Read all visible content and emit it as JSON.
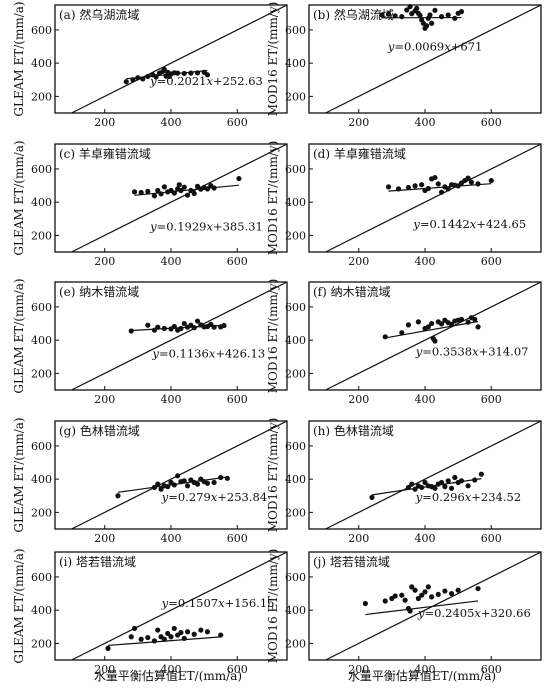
{
  "figure": {
    "xlabel": "水量平衡估算值ET/(mm/a)",
    "ylabel_left": "GLEAM ET/(mm/a)",
    "ylabel_right": "MOD16 ET/(mm/y)"
  },
  "chart_data": [
    {
      "type": "scatter",
      "title": "(a) 然乌湖流域",
      "ylabel": "GLEAM ET/(mm/a)",
      "xlim": [
        50,
        750
      ],
      "ylim": [
        100,
        750
      ],
      "xticks": [
        200,
        400,
        600
      ],
      "yticks": [
        200,
        400,
        600
      ],
      "equation": "y=0.2021x+252.63",
      "fit": {
        "slope": 0.2021,
        "intercept": 252.63
      },
      "reference_line": "1:1",
      "points": [
        [
          265,
          288
        ],
        [
          285,
          300
        ],
        [
          300,
          312
        ],
        [
          315,
          305
        ],
        [
          330,
          320
        ],
        [
          345,
          330
        ],
        [
          355,
          318
        ],
        [
          365,
          340
        ],
        [
          375,
          350
        ],
        [
          380,
          362
        ],
        [
          385,
          322
        ],
        [
          390,
          345
        ],
        [
          395,
          320
        ],
        [
          400,
          335
        ],
        [
          410,
          342
        ],
        [
          420,
          340
        ],
        [
          440,
          338
        ],
        [
          460,
          340
        ],
        [
          480,
          342
        ],
        [
          500,
          345
        ],
        [
          510,
          330
        ]
      ]
    },
    {
      "type": "scatter",
      "title": "(b) 然乌湖流域",
      "ylabel": "MOD16 ET/(mm/y)",
      "xlim": [
        50,
        750
      ],
      "ylim": [
        100,
        750
      ],
      "xticks": [
        200,
        400,
        600
      ],
      "yticks": [
        200,
        400,
        600
      ],
      "equation": "y=0.0069x+671",
      "fit": {
        "slope": 0.0069,
        "intercept": 671
      },
      "reference_line": "1:1",
      "points": [
        [
          270,
          690
        ],
        [
          290,
          695
        ],
        [
          310,
          685
        ],
        [
          330,
          680
        ],
        [
          345,
          720
        ],
        [
          355,
          740
        ],
        [
          360,
          698
        ],
        [
          370,
          715
        ],
        [
          375,
          730
        ],
        [
          380,
          700
        ],
        [
          385,
          688
        ],
        [
          390,
          660
        ],
        [
          395,
          640
        ],
        [
          400,
          610
        ],
        [
          405,
          625
        ],
        [
          410,
          670
        ],
        [
          415,
          690
        ],
        [
          420,
          640
        ],
        [
          430,
          718
        ],
        [
          450,
          680
        ],
        [
          470,
          690
        ],
        [
          490,
          670
        ],
        [
          500,
          700
        ],
        [
          510,
          710
        ]
      ]
    },
    {
      "type": "scatter",
      "title": "(c) 羊卓雍错流域",
      "ylabel": "GLEAM ET/(mm/a)",
      "xlim": [
        50,
        750
      ],
      "ylim": [
        100,
        750
      ],
      "xticks": [
        200,
        400,
        600
      ],
      "yticks": [
        200,
        400,
        600
      ],
      "equation": "y=0.1929x+385.31",
      "fit": {
        "slope": 0.1929,
        "intercept": 385.31
      },
      "reference_line": "1:1",
      "points": [
        [
          290,
          462
        ],
        [
          310,
          458
        ],
        [
          330,
          465
        ],
        [
          350,
          438
        ],
        [
          360,
          470
        ],
        [
          370,
          450
        ],
        [
          380,
          492
        ],
        [
          390,
          462
        ],
        [
          400,
          470
        ],
        [
          410,
          455
        ],
        [
          420,
          480
        ],
        [
          425,
          505
        ],
        [
          430,
          470
        ],
        [
          440,
          490
        ],
        [
          450,
          442
        ],
        [
          460,
          470
        ],
        [
          470,
          452
        ],
        [
          480,
          495
        ],
        [
          490,
          478
        ],
        [
          500,
          488
        ],
        [
          510,
          480
        ],
        [
          520,
          500
        ],
        [
          530,
          485
        ],
        [
          605,
          542
        ]
      ]
    },
    {
      "type": "scatter",
      "title": "(d) 羊卓雍错流域",
      "ylabel": "MOD16 ET/(mm/y)",
      "xlim": [
        50,
        750
      ],
      "ylim": [
        100,
        750
      ],
      "xticks": [
        200,
        400,
        600
      ],
      "yticks": [
        200,
        400,
        600
      ],
      "equation": "y=0.1442x+424.65",
      "fit": {
        "slope": 0.1442,
        "intercept": 424.65
      },
      "reference_line": "1:1",
      "points": [
        [
          290,
          492
        ],
        [
          320,
          480
        ],
        [
          350,
          488
        ],
        [
          370,
          498
        ],
        [
          390,
          505
        ],
        [
          400,
          470
        ],
        [
          410,
          482
        ],
        [
          420,
          540
        ],
        [
          430,
          548
        ],
        [
          440,
          510
        ],
        [
          450,
          460
        ],
        [
          460,
          492
        ],
        [
          470,
          480
        ],
        [
          480,
          505
        ],
        [
          490,
          502
        ],
        [
          500,
          498
        ],
        [
          510,
          515
        ],
        [
          520,
          530
        ],
        [
          530,
          545
        ],
        [
          540,
          520
        ],
        [
          560,
          510
        ],
        [
          600,
          530
        ]
      ]
    },
    {
      "type": "scatter",
      "title": "(e) 纳木错流域",
      "ylabel": "GLEAM ET/(mm/a)",
      "xlim": [
        50,
        750
      ],
      "ylim": [
        100,
        750
      ],
      "xticks": [
        200,
        400,
        600
      ],
      "yticks": [
        200,
        400,
        600
      ],
      "equation": "y=0.1136x+426.13",
      "fit": {
        "slope": 0.1136,
        "intercept": 426.13
      },
      "reference_line": "1:1",
      "points": [
        [
          280,
          455
        ],
        [
          330,
          490
        ],
        [
          350,
          460
        ],
        [
          360,
          478
        ],
        [
          380,
          470
        ],
        [
          400,
          468
        ],
        [
          410,
          482
        ],
        [
          420,
          460
        ],
        [
          430,
          470
        ],
        [
          440,
          500
        ],
        [
          450,
          478
        ],
        [
          460,
          490
        ],
        [
          470,
          475
        ],
        [
          480,
          515
        ],
        [
          490,
          492
        ],
        [
          500,
          480
        ],
        [
          510,
          482
        ],
        [
          520,
          495
        ],
        [
          530,
          478
        ],
        [
          550,
          480
        ],
        [
          560,
          488
        ]
      ]
    },
    {
      "type": "scatter",
      "title": "(f) 纳木错流域",
      "ylabel": "MOD16 ET/(mm/y)",
      "xlim": [
        50,
        750
      ],
      "ylim": [
        100,
        750
      ],
      "xticks": [
        200,
        400,
        600
      ],
      "yticks": [
        200,
        400,
        600
      ],
      "equation": "y=0.3538x+314.07",
      "fit": {
        "slope": 0.3538,
        "intercept": 314.07
      },
      "reference_line": "1:1",
      "points": [
        [
          280,
          420
        ],
        [
          330,
          445
        ],
        [
          350,
          492
        ],
        [
          380,
          510
        ],
        [
          400,
          470
        ],
        [
          410,
          480
        ],
        [
          420,
          500
        ],
        [
          425,
          410
        ],
        [
          430,
          395
        ],
        [
          440,
          510
        ],
        [
          450,
          498
        ],
        [
          460,
          520
        ],
        [
          470,
          505
        ],
        [
          480,
          495
        ],
        [
          490,
          515
        ],
        [
          500,
          520
        ],
        [
          510,
          525
        ],
        [
          530,
          508
        ],
        [
          540,
          535
        ],
        [
          550,
          525
        ],
        [
          560,
          480
        ]
      ]
    },
    {
      "type": "scatter",
      "title": "(g) 色林错流域",
      "ylabel": "GLEAM ET/(mm/a)",
      "xlim": [
        50,
        750
      ],
      "ylim": [
        100,
        750
      ],
      "xticks": [
        200,
        400,
        600
      ],
      "yticks": [
        200,
        400,
        600
      ],
      "equation": "y=0.279x+253.84",
      "fit": {
        "slope": 0.279,
        "intercept": 253.84
      },
      "reference_line": "1:1",
      "points": [
        [
          240,
          300
        ],
        [
          350,
          350
        ],
        [
          360,
          370
        ],
        [
          370,
          340
        ],
        [
          380,
          360
        ],
        [
          390,
          355
        ],
        [
          400,
          380
        ],
        [
          410,
          365
        ],
        [
          420,
          420
        ],
        [
          430,
          385
        ],
        [
          440,
          390
        ],
        [
          450,
          360
        ],
        [
          460,
          395
        ],
        [
          470,
          380
        ],
        [
          480,
          370
        ],
        [
          490,
          400
        ],
        [
          500,
          385
        ],
        [
          510,
          375
        ],
        [
          530,
          380
        ],
        [
          550,
          410
        ],
        [
          570,
          405
        ]
      ]
    },
    {
      "type": "scatter",
      "title": "(h) 色林错流域",
      "ylabel": "MOD16 ET/(mm/y)",
      "xlim": [
        50,
        750
      ],
      "ylim": [
        100,
        750
      ],
      "xticks": [
        200,
        400,
        600
      ],
      "yticks": [
        200,
        400,
        600
      ],
      "equation": "y=0.296x+234.52",
      "fit": {
        "slope": 0.296,
        "intercept": 234.52
      },
      "reference_line": "1:1",
      "points": [
        [
          240,
          290
        ],
        [
          350,
          350
        ],
        [
          360,
          370
        ],
        [
          370,
          340
        ],
        [
          380,
          360
        ],
        [
          390,
          350
        ],
        [
          400,
          380
        ],
        [
          410,
          360
        ],
        [
          420,
          355
        ],
        [
          430,
          345
        ],
        [
          440,
          370
        ],
        [
          450,
          380
        ],
        [
          460,
          355
        ],
        [
          470,
          390
        ],
        [
          480,
          345
        ],
        [
          490,
          410
        ],
        [
          500,
          380
        ],
        [
          510,
          390
        ],
        [
          530,
          360
        ],
        [
          550,
          395
        ],
        [
          570,
          430
        ]
      ]
    },
    {
      "type": "scatter",
      "title": "(i) 塔若错流域",
      "ylabel": "GLEAM ET/(mm/a)",
      "xlim": [
        50,
        750
      ],
      "ylim": [
        100,
        750
      ],
      "xticks": [
        200,
        400,
        600
      ],
      "yticks": [
        200,
        400,
        600
      ],
      "equation": "y=0.1507x+156.15",
      "fit": {
        "slope": 0.1507,
        "intercept": 156.15
      },
      "reference_line": "1:1",
      "points": [
        [
          210,
          170
        ],
        [
          280,
          240
        ],
        [
          290,
          290
        ],
        [
          310,
          225
        ],
        [
          330,
          235
        ],
        [
          350,
          215
        ],
        [
          360,
          280
        ],
        [
          370,
          240
        ],
        [
          380,
          225
        ],
        [
          390,
          260
        ],
        [
          400,
          240
        ],
        [
          410,
          290
        ],
        [
          420,
          250
        ],
        [
          430,
          265
        ],
        [
          440,
          230
        ],
        [
          450,
          270
        ],
        [
          470,
          255
        ],
        [
          490,
          280
        ],
        [
          510,
          270
        ],
        [
          550,
          250
        ]
      ]
    },
    {
      "type": "scatter",
      "title": "(j) 塔若错流域",
      "ylabel": "MOD16 ET/(mm/y)",
      "xlim": [
        50,
        750
      ],
      "ylim": [
        100,
        750
      ],
      "xticks": [
        200,
        400,
        600
      ],
      "yticks": [
        200,
        400,
        600
      ],
      "equation": "y=0.2405x+320.66",
      "fit": {
        "slope": 0.2405,
        "intercept": 320.66
      },
      "reference_line": "1:1",
      "points": [
        [
          220,
          440
        ],
        [
          280,
          455
        ],
        [
          300,
          470
        ],
        [
          310,
          485
        ],
        [
          330,
          490
        ],
        [
          340,
          460
        ],
        [
          350,
          410
        ],
        [
          355,
          395
        ],
        [
          360,
          540
        ],
        [
          370,
          520
        ],
        [
          380,
          470
        ],
        [
          390,
          490
        ],
        [
          400,
          510
        ],
        [
          410,
          540
        ],
        [
          420,
          480
        ],
        [
          440,
          495
        ],
        [
          460,
          515
        ],
        [
          480,
          500
        ],
        [
          500,
          520
        ],
        [
          560,
          530
        ]
      ]
    }
  ]
}
